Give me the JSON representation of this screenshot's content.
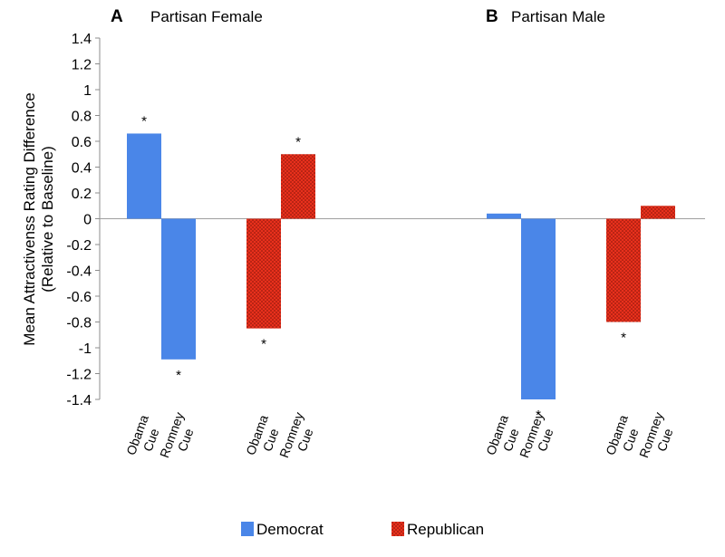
{
  "chart_data": {
    "type": "bar",
    "ylabel_lines": [
      "Mean Attractivenss Rating Difference",
      "(Relative to Baseline)"
    ],
    "ylim": [
      -1.4,
      1.4
    ],
    "yticks": [
      "1.4",
      "1.2",
      "1",
      "0.8",
      "0.6",
      "0.4",
      "0.2",
      "0",
      "-0.2",
      "-0.4",
      "-0.6",
      "-0.8",
      "-1",
      "-1.2",
      "-1.4"
    ],
    "grid": false,
    "legend_position": "bottom",
    "panels": [
      {
        "letter": "A",
        "title": "Partisan Female",
        "groups": [
          {
            "series": "Democrat",
            "bars": [
              {
                "label_lines": [
                  "Obama",
                  "Cue"
                ],
                "value": 0.66,
                "significant": true
              },
              {
                "label_lines": [
                  "Romney",
                  "Cue"
                ],
                "value": -1.09,
                "significant": true
              }
            ]
          },
          {
            "series": "Republican",
            "bars": [
              {
                "label_lines": [
                  "Obama",
                  "Cue"
                ],
                "value": -0.85,
                "significant": true
              },
              {
                "label_lines": [
                  "Romney",
                  "Cue"
                ],
                "value": 0.5,
                "significant": true
              }
            ]
          }
        ]
      },
      {
        "letter": "B",
        "title": "Partisan Male",
        "groups": [
          {
            "series": "Democrat",
            "bars": [
              {
                "label_lines": [
                  "Obama",
                  "Cue"
                ],
                "value": 0.04,
                "significant": false
              },
              {
                "label_lines": [
                  "Romney",
                  "Cue"
                ],
                "value": -1.4,
                "significant": true
              }
            ]
          },
          {
            "series": "Republican",
            "bars": [
              {
                "label_lines": [
                  "Obama",
                  "Cue"
                ],
                "value": -0.8,
                "significant": true
              },
              {
                "label_lines": [
                  "Romney",
                  "Cue"
                ],
                "value": 0.1,
                "significant": false
              }
            ]
          }
        ]
      }
    ],
    "significance_marker": "*",
    "legend": [
      {
        "name": "Democrat",
        "color": "#4a86e8",
        "pattern": "solid"
      },
      {
        "name": "Republican",
        "color": "#e8301c",
        "pattern": "dotted"
      }
    ]
  }
}
